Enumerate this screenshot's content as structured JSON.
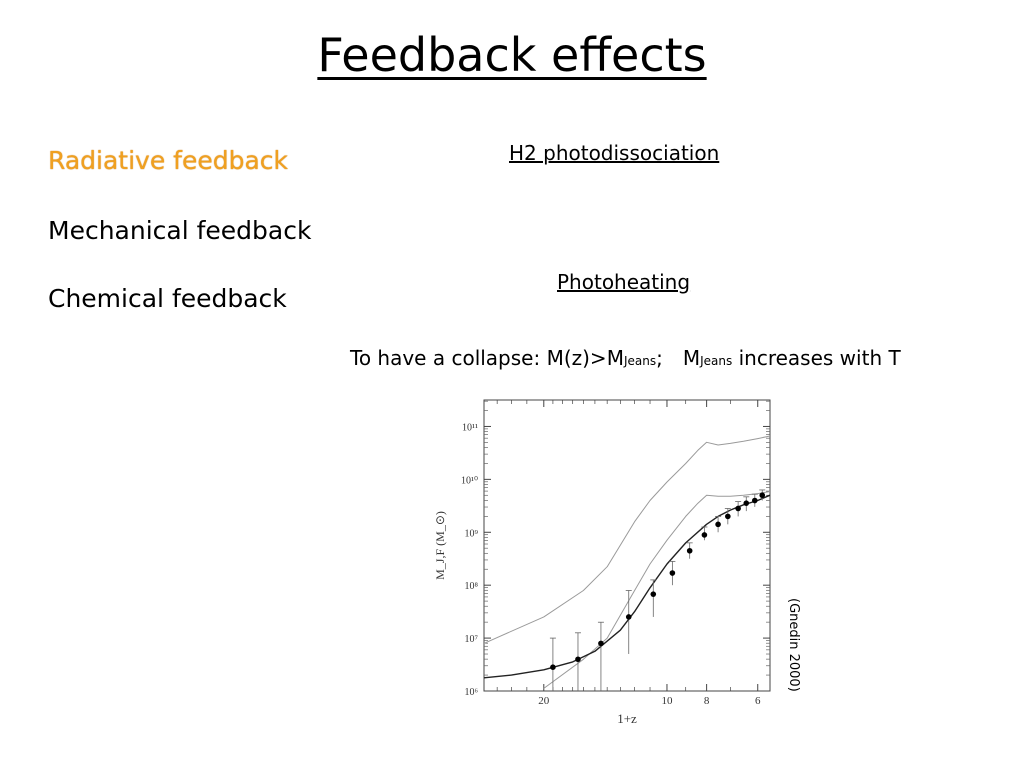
{
  "slide": {
    "title": "Feedback effects",
    "feedback_list": [
      "Radiative feedback",
      "Mechanical feedback",
      "Chemical feedback"
    ],
    "topics": {
      "h2": "H2 photodissociation",
      "photoheating": "Photoheating"
    },
    "collapse": {
      "prefix": "To have a collapse: M(z)>M",
      "sub1": "Jeans",
      "mid": ";",
      "m": "M",
      "sub2": "Jeans",
      "suffix": " increases with T"
    },
    "citation": "(Gnedin 2000)"
  },
  "chart_data": {
    "type": "line",
    "xlabel": "1+z",
    "ylabel": "M_J,F (M_⊙)",
    "x_scale": "log",
    "x_reversed": true,
    "xlim": [
      28,
      5.6
    ],
    "x_ticks": [
      20,
      10,
      8,
      6
    ],
    "x_tick_labels": [
      "20",
      "10",
      "8",
      "6"
    ],
    "y_scale": "log",
    "ylim_log10": [
      6,
      11.5
    ],
    "y_ticks_log10": [
      6,
      7,
      8,
      9,
      10,
      11
    ],
    "y_tick_labels": [
      "10⁶",
      "10⁷",
      "10⁸",
      "10⁹",
      "10¹⁰",
      "10¹¹"
    ],
    "series": [
      {
        "style": "gray-thin",
        "x": [
          28,
          20,
          16,
          14,
          12,
          11,
          10,
          9,
          8.4,
          8,
          7.5,
          7,
          6.5,
          6,
          5.6
        ],
        "y_log10": [
          6.9,
          7.4,
          7.9,
          8.35,
          9.2,
          9.6,
          9.95,
          10.3,
          10.55,
          10.7,
          10.65,
          10.68,
          10.72,
          10.77,
          10.82
        ]
      },
      {
        "style": "gray-thin",
        "x": [
          20,
          16,
          14,
          12,
          11,
          10,
          9,
          8.4,
          8,
          7.5,
          7,
          6.5,
          6,
          5.6
        ],
        "y_log10": [
          6.05,
          6.6,
          7.0,
          7.9,
          8.4,
          8.85,
          9.3,
          9.55,
          9.7,
          9.68,
          9.68,
          9.7,
          9.73,
          9.77
        ]
      },
      {
        "style": "black-thick",
        "x": [
          28,
          24,
          20,
          17,
          15,
          13,
          12,
          11,
          10,
          9,
          8,
          7.5,
          7,
          6.5,
          6,
          5.6
        ],
        "y_log10": [
          6.25,
          6.3,
          6.4,
          6.55,
          6.75,
          7.15,
          7.5,
          7.95,
          8.4,
          8.8,
          9.15,
          9.3,
          9.42,
          9.52,
          9.6,
          9.7
        ]
      }
    ],
    "points": {
      "x": [
        19,
        16.5,
        14.5,
        12.4,
        10.8,
        9.7,
        8.8,
        8.1,
        7.5,
        7.1,
        6.7,
        6.4,
        6.1,
        5.85
      ],
      "y_log10": [
        6.45,
        6.6,
        6.9,
        7.4,
        7.83,
        8.23,
        8.65,
        8.95,
        9.15,
        9.3,
        9.45,
        9.55,
        9.6,
        9.7
      ],
      "err_lo_log10": [
        6.0,
        6.0,
        6.0,
        6.7,
        7.4,
        8.0,
        8.5,
        8.85,
        9.0,
        9.15,
        9.3,
        9.4,
        9.48,
        9.6
      ],
      "err_hi_log10": [
        7.0,
        7.1,
        7.3,
        7.9,
        8.1,
        8.45,
        8.8,
        9.1,
        9.3,
        9.45,
        9.58,
        9.67,
        9.72,
        9.8
      ]
    }
  }
}
